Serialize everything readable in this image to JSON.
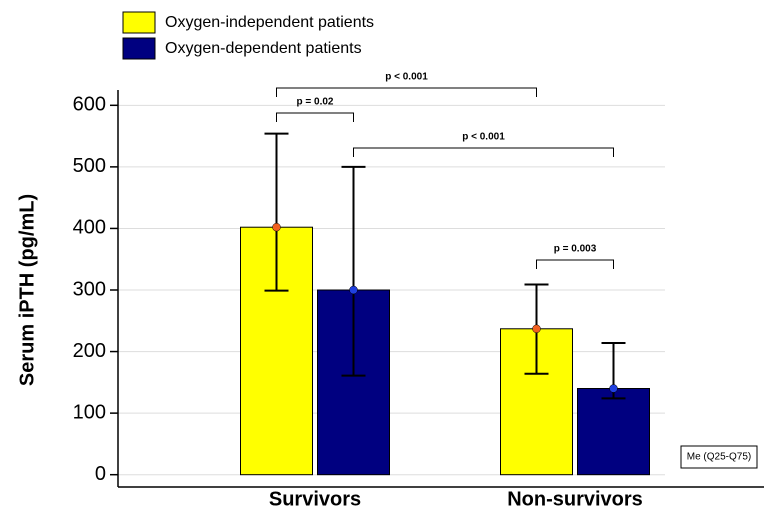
{
  "chart_data": {
    "type": "bar",
    "y_label": "Serum iPTH (pg/mL)",
    "categories": [
      "Survivors",
      "Non-survivors"
    ],
    "series": [
      {
        "name": "Oxygen-independent patients",
        "color": "#ffff00",
        "marker_color": "#f06020",
        "values": [
          402,
          237
        ],
        "q25": [
          299,
          164
        ],
        "q75": [
          554,
          309
        ]
      },
      {
        "name": "Oxygen-dependent patients",
        "color": "#000080",
        "marker_color": "#2040e0",
        "values": [
          300,
          140
        ],
        "q25": [
          161,
          124
        ],
        "q75": [
          500,
          214
        ]
      }
    ],
    "ylim": [
      -20,
      620
    ],
    "yticks": [
      0,
      100,
      200,
      300,
      400,
      500,
      600
    ],
    "grid": true,
    "legend": "top-left",
    "annotations": [
      "p < 0.001",
      "p = 0.02",
      "p < 0.001",
      "p = 0.003"
    ],
    "note": "Me (Q25-Q75)"
  }
}
